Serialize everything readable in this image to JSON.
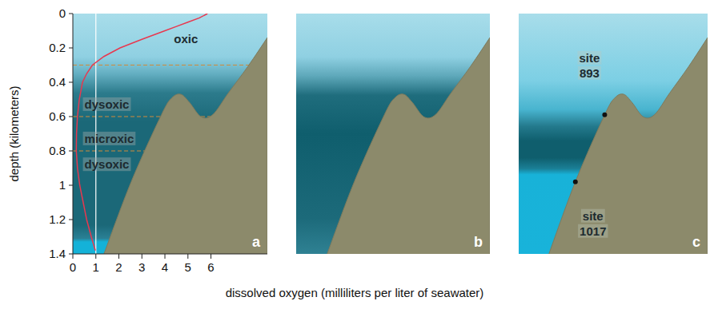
{
  "chart_data": [
    {
      "type": "line",
      "panel_label": "a",
      "xlabel": "dissolved oxygen (milliliters per liter of seawater)",
      "ylabel": "depth (kilometers)",
      "x": [
        5.85,
        5.5,
        5.0,
        4.5,
        4.0,
        3.0,
        2.05,
        1.35,
        0.85,
        0.6,
        0.42,
        0.28,
        0.2,
        0.16,
        0.15,
        0.2,
        0.3,
        0.45,
        0.6,
        0.8,
        0.98
      ],
      "values": [
        0,
        0.025,
        0.05,
        0.075,
        0.1,
        0.15,
        0.2,
        0.25,
        0.3,
        0.35,
        0.4,
        0.5,
        0.6,
        0.7,
        0.8,
        0.9,
        1.0,
        1.1,
        1.2,
        1.3,
        1.38
      ],
      "color": "#e8384f",
      "xlim": [
        0,
        8.45
      ],
      "xticks": [
        0,
        1,
        2,
        3,
        4,
        5,
        6
      ],
      "ylim": [
        1.4,
        0
      ],
      "yticks": [
        0,
        0.2,
        0.4,
        0.6,
        0.8,
        1.0,
        1.2,
        1.4
      ],
      "reference_x": 1,
      "zones": [
        "oxic",
        "dysoxic",
        "microxic",
        "dysoxic"
      ],
      "boundaries": [
        0.3,
        0.6,
        0.8
      ]
    },
    {
      "type": "diagram",
      "panel_label": "b",
      "ylim": [
        1.4,
        0
      ],
      "tick_labels": false
    },
    {
      "type": "diagram",
      "panel_label": "c",
      "ylim": [
        1.4,
        0
      ],
      "tick_labels": false,
      "sites": [
        {
          "label": [
            "site",
            "893"
          ],
          "depth": 0.59
        },
        {
          "label": [
            "site",
            "1017"
          ],
          "depth": 0.98
        }
      ]
    }
  ]
}
